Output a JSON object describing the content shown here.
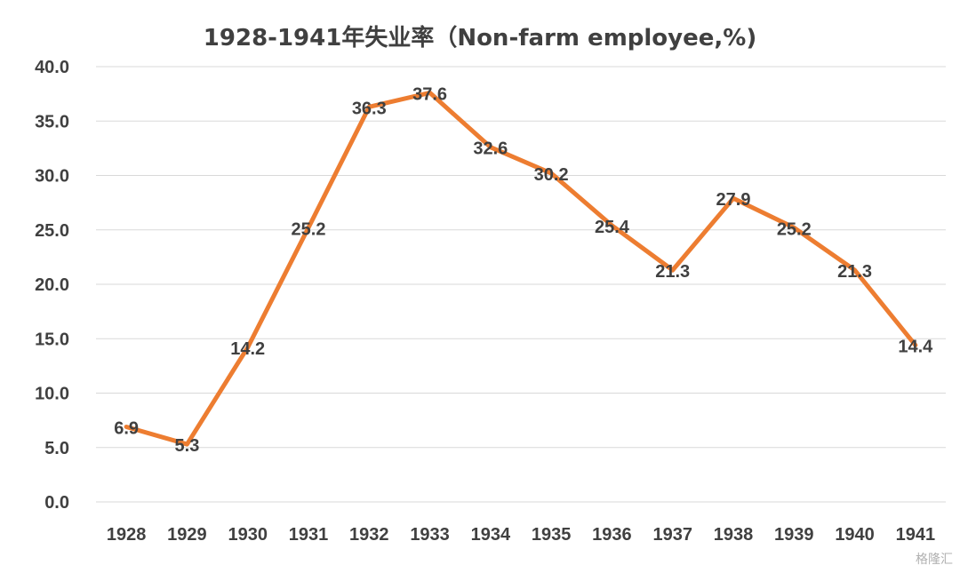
{
  "chart_data": {
    "type": "line",
    "title": "1928-1941年失业率（Non-farm employee,%)",
    "xlabel": "",
    "ylabel": "",
    "categories": [
      "1928",
      "1929",
      "1930",
      "1931",
      "1932",
      "1933",
      "1934",
      "1935",
      "1936",
      "1937",
      "1938",
      "1939",
      "1940",
      "1941"
    ],
    "series": [
      {
        "values": [
          6.9,
          5.3,
          14.2,
          25.2,
          36.3,
          37.6,
          32.6,
          30.2,
          25.4,
          21.3,
          27.9,
          25.2,
          21.3,
          14.4
        ],
        "labels": [
          "6.9",
          "5.3",
          "14.2",
          "25.2",
          "36.3",
          "37.6",
          "32.6",
          "30.2",
          "25.4",
          "21.3",
          "27.9",
          "25.2",
          "21.3",
          "14.4"
        ]
      }
    ],
    "ylim": [
      0,
      40
    ],
    "yticks": [
      "0.0",
      "5.0",
      "10.0",
      "15.0",
      "20.0",
      "25.0",
      "30.0",
      "35.0",
      "40.0"
    ],
    "grid": true,
    "legend": "none",
    "colors": {
      "line": "#ED7D31",
      "grid": "#D9D9D9",
      "text": "#404040"
    }
  },
  "watermark": "格隆汇"
}
